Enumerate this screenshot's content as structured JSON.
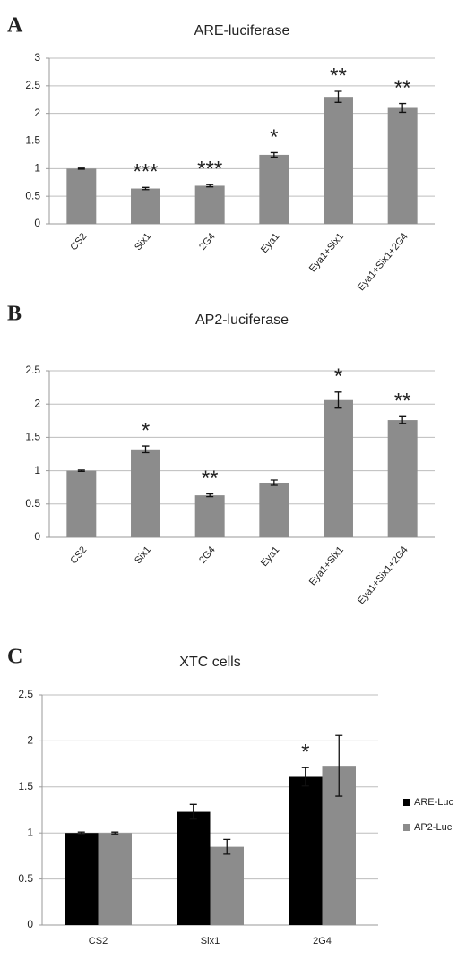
{
  "chart_data": [
    {
      "type": "bar",
      "panel_label": "A",
      "title": "ARE-luciferase",
      "categories": [
        "CS2",
        "Six1",
        "2G4",
        "Eya1",
        "Eya1+Six1",
        "Eya1+Six1+2G4"
      ],
      "values": [
        1.0,
        0.64,
        0.69,
        1.25,
        2.3,
        2.1
      ],
      "errors": [
        0.01,
        0.02,
        0.02,
        0.04,
        0.1,
        0.08
      ],
      "annotations": [
        null,
        "***",
        "***",
        "*",
        "**",
        "**"
      ],
      "color": "#8c8c8c",
      "ylim": [
        0,
        3
      ],
      "yticks": [
        0,
        0.5,
        1,
        1.5,
        2,
        2.5,
        3
      ],
      "grid": true
    },
    {
      "type": "bar",
      "panel_label": "B",
      "title": "AP2-luciferase",
      "categories": [
        "CS2",
        "Six1",
        "2G4",
        "Eya1",
        "Eya1+Six1",
        "Eya1+Six1+2G4"
      ],
      "values": [
        1.0,
        1.32,
        0.63,
        0.82,
        2.06,
        1.76
      ],
      "errors": [
        0.01,
        0.05,
        0.02,
        0.04,
        0.12,
        0.05
      ],
      "annotations": [
        null,
        "*",
        "**",
        null,
        "*",
        "**"
      ],
      "color": "#8c8c8c",
      "ylim": [
        0,
        2.5
      ],
      "yticks": [
        0,
        0.5,
        1,
        1.5,
        2,
        2.5
      ],
      "grid": true
    },
    {
      "type": "bar",
      "panel_label": "C",
      "title": "XTC cells",
      "categories": [
        "CS2",
        "Six1",
        "2G4"
      ],
      "series": [
        {
          "name": "ARE-Luc",
          "color": "#000000",
          "values": [
            1.0,
            1.23,
            1.61
          ],
          "errors": [
            0.01,
            0.08,
            0.1
          ]
        },
        {
          "name": "AP2-Luc",
          "color": "#8c8c8c",
          "values": [
            1.0,
            0.85,
            1.73
          ],
          "errors": [
            0.01,
            0.08,
            0.33
          ]
        }
      ],
      "annotations": [
        null,
        null,
        "*"
      ],
      "legend": "right",
      "ylim": [
        0,
        2.5
      ],
      "yticks": [
        0,
        0.5,
        1,
        1.5,
        2,
        2.5
      ],
      "grid": true
    }
  ]
}
